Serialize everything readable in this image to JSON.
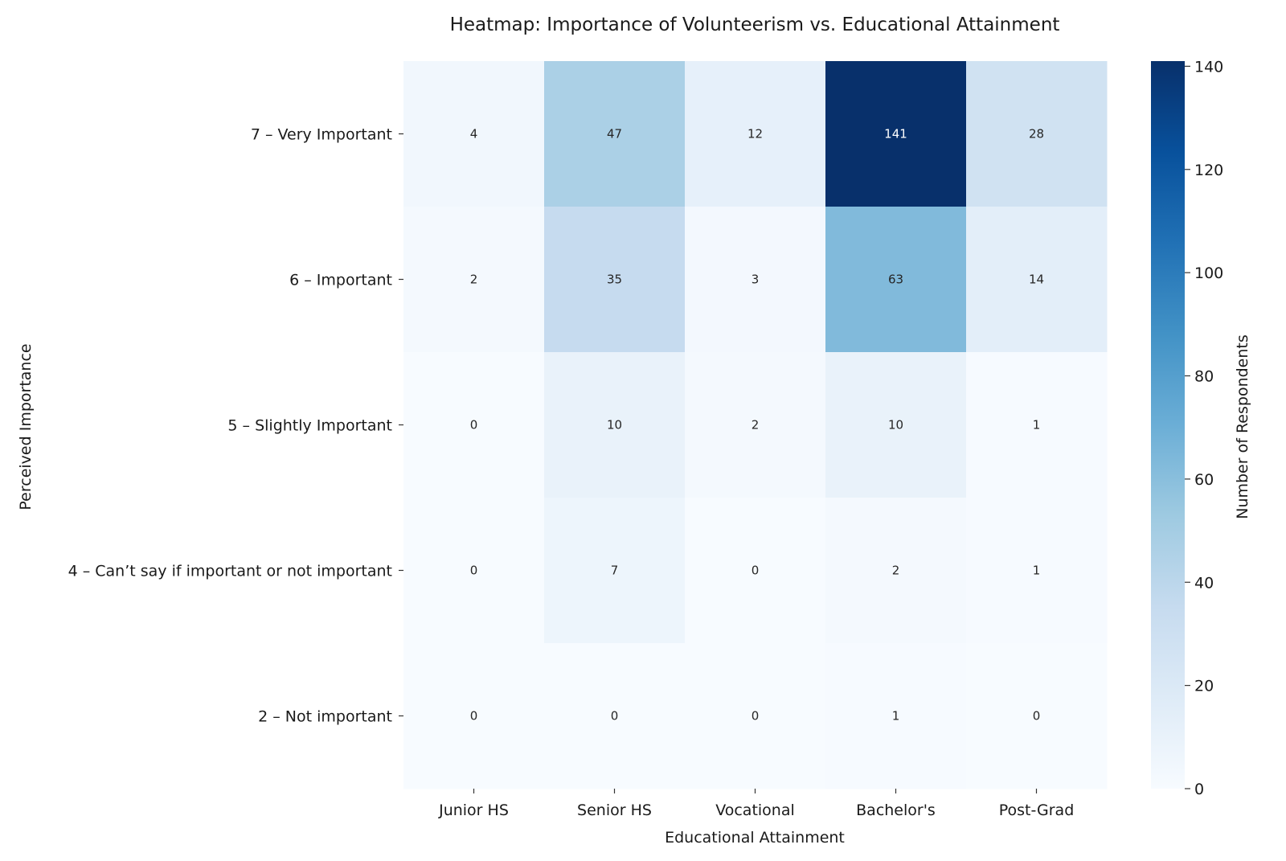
{
  "chart_data": {
    "type": "heatmap",
    "title": "Heatmap: Importance of Volunteerism vs. Educational Attainment",
    "xlabel": "Educational Attainment",
    "ylabel": "Perceived Importance",
    "x_categories": [
      "Junior HS",
      "Senior HS",
      "Vocational",
      "Bachelor's",
      "Post-Grad"
    ],
    "y_categories": [
      "7 – Very Important",
      "6 – Important",
      "5 – Slightly Important",
      "4 – Can’t say if important or not important",
      "2 – Not important"
    ],
    "values": [
      [
        4,
        47,
        12,
        141,
        28
      ],
      [
        2,
        35,
        3,
        63,
        14
      ],
      [
        0,
        10,
        2,
        10,
        1
      ],
      [
        0,
        7,
        0,
        2,
        1
      ],
      [
        0,
        0,
        0,
        1,
        0
      ]
    ],
    "colorbar": {
      "label": "Number of Respondents",
      "range": [
        0,
        141
      ],
      "ticks": [
        0,
        20,
        40,
        60,
        80,
        100,
        120,
        140
      ],
      "colormap": "Blues",
      "colors": [
        "#f7fbff",
        "#deebf7",
        "#c6dbef",
        "#9ecae1",
        "#6baed6",
        "#4292c6",
        "#2171b5",
        "#08519c",
        "#08306b"
      ]
    },
    "annotations": true,
    "grid": false
  }
}
